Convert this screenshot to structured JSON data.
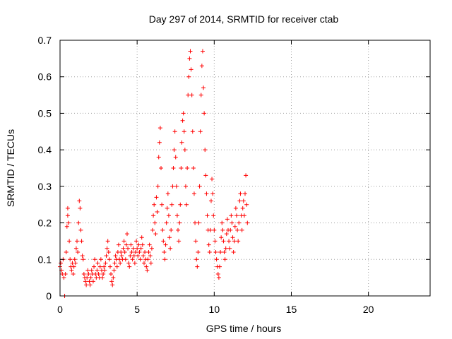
{
  "chart_data": {
    "type": "scatter",
    "title": "Day 297 of 2014, SRMTID for receiver ctab",
    "xlabel": "GPS time / hours",
    "ylabel": "SRMTID / TECUs",
    "xlim": [
      0,
      24
    ],
    "ylim": [
      0,
      0.7
    ],
    "xticks": [
      0,
      5,
      10,
      15,
      20
    ],
    "yticks": [
      0,
      0.1,
      0.2,
      0.3,
      0.4,
      0.5,
      0.6,
      0.7
    ],
    "xtick_labels": [
      "0",
      "5",
      "10",
      "15",
      "20"
    ],
    "ytick_labels": [
      "0",
      "0.1",
      "0.2",
      "0.3",
      "0.4",
      "0.5",
      "0.6",
      "0.7"
    ],
    "grid": true,
    "marker": "+",
    "marker_color": "#ff0000",
    "series": [
      {
        "name": "SRMTID",
        "points": [
          [
            0.0,
            0.08
          ],
          [
            0.05,
            0.09
          ],
          [
            0.1,
            0.07
          ],
          [
            0.15,
            0.06
          ],
          [
            0.2,
            0.1
          ],
          [
            0.25,
            0.05
          ],
          [
            0.3,
            0.0
          ],
          [
            0.35,
            0.06
          ],
          [
            0.4,
            0.12
          ],
          [
            0.45,
            0.19
          ],
          [
            0.5,
            0.22
          ],
          [
            0.5,
            0.24
          ],
          [
            0.55,
            0.2
          ],
          [
            0.6,
            0.15
          ],
          [
            0.65,
            0.1
          ],
          [
            0.7,
            0.08
          ],
          [
            0.75,
            0.07
          ],
          [
            0.8,
            0.09
          ],
          [
            0.85,
            0.06
          ],
          [
            0.9,
            0.08
          ],
          [
            0.95,
            0.1
          ],
          [
            1.0,
            0.09
          ],
          [
            1.05,
            0.13
          ],
          [
            1.1,
            0.15
          ],
          [
            1.15,
            0.12
          ],
          [
            1.2,
            0.2
          ],
          [
            1.25,
            0.26
          ],
          [
            1.3,
            0.24
          ],
          [
            1.35,
            0.18
          ],
          [
            1.4,
            0.15
          ],
          [
            1.45,
            0.11
          ],
          [
            1.5,
            0.1
          ],
          [
            1.55,
            0.06
          ],
          [
            1.6,
            0.05
          ],
          [
            1.65,
            0.04
          ],
          [
            1.7,
            0.03
          ],
          [
            1.75,
            0.05
          ],
          [
            1.8,
            0.07
          ],
          [
            1.85,
            0.06
          ],
          [
            1.9,
            0.04
          ],
          [
            1.95,
            0.03
          ],
          [
            2.0,
            0.05
          ],
          [
            2.05,
            0.07
          ],
          [
            2.1,
            0.06
          ],
          [
            2.15,
            0.04
          ],
          [
            2.2,
            0.08
          ],
          [
            2.25,
            0.1
          ],
          [
            2.3,
            0.06
          ],
          [
            2.35,
            0.05
          ],
          [
            2.4,
            0.07
          ],
          [
            2.45,
            0.09
          ],
          [
            2.5,
            0.06
          ],
          [
            2.55,
            0.05
          ],
          [
            2.6,
            0.08
          ],
          [
            2.65,
            0.1
          ],
          [
            2.7,
            0.07
          ],
          [
            2.75,
            0.05
          ],
          [
            2.8,
            0.06
          ],
          [
            2.85,
            0.08
          ],
          [
            2.9,
            0.07
          ],
          [
            2.95,
            0.09
          ],
          [
            3.0,
            0.11
          ],
          [
            3.05,
            0.13
          ],
          [
            3.1,
            0.15
          ],
          [
            3.15,
            0.12
          ],
          [
            3.2,
            0.1
          ],
          [
            3.25,
            0.08
          ],
          [
            3.3,
            0.06
          ],
          [
            3.35,
            0.04
          ],
          [
            3.4,
            0.03
          ],
          [
            3.45,
            0.05
          ],
          [
            3.5,
            0.07
          ],
          [
            3.55,
            0.09
          ],
          [
            3.6,
            0.11
          ],
          [
            3.65,
            0.1
          ],
          [
            3.7,
            0.08
          ],
          [
            3.75,
            0.12
          ],
          [
            3.8,
            0.14
          ],
          [
            3.85,
            0.1
          ],
          [
            3.9,
            0.09
          ],
          [
            3.95,
            0.12
          ],
          [
            4.0,
            0.11
          ],
          [
            4.05,
            0.1
          ],
          [
            4.1,
            0.13
          ],
          [
            4.15,
            0.15
          ],
          [
            4.2,
            0.12
          ],
          [
            4.25,
            0.1
          ],
          [
            4.3,
            0.14
          ],
          [
            4.35,
            0.17
          ],
          [
            4.4,
            0.13
          ],
          [
            4.45,
            0.09
          ],
          [
            4.5,
            0.08
          ],
          [
            4.55,
            0.11
          ],
          [
            4.6,
            0.14
          ],
          [
            4.65,
            0.12
          ],
          [
            4.7,
            0.1
          ],
          [
            4.75,
            0.13
          ],
          [
            4.8,
            0.11
          ],
          [
            4.85,
            0.09
          ],
          [
            4.9,
            0.12
          ],
          [
            4.95,
            0.15
          ],
          [
            5.0,
            0.13
          ],
          [
            5.05,
            0.11
          ],
          [
            5.1,
            0.14
          ],
          [
            5.15,
            0.12
          ],
          [
            5.2,
            0.1
          ],
          [
            5.25,
            0.13
          ],
          [
            5.3,
            0.16
          ],
          [
            5.35,
            0.14
          ],
          [
            5.4,
            0.11
          ],
          [
            5.45,
            0.09
          ],
          [
            5.5,
            0.12
          ],
          [
            5.55,
            0.1
          ],
          [
            5.6,
            0.08
          ],
          [
            5.65,
            0.07
          ],
          [
            5.7,
            0.1
          ],
          [
            5.75,
            0.12
          ],
          [
            5.8,
            0.14
          ],
          [
            5.85,
            0.11
          ],
          [
            5.9,
            0.09
          ],
          [
            5.95,
            0.13
          ],
          [
            6.0,
            0.18
          ],
          [
            6.05,
            0.22
          ],
          [
            6.1,
            0.25
          ],
          [
            6.15,
            0.2
          ],
          [
            6.2,
            0.17
          ],
          [
            6.25,
            0.27
          ],
          [
            6.3,
            0.23
          ],
          [
            6.35,
            0.3
          ],
          [
            6.4,
            0.38
          ],
          [
            6.45,
            0.42
          ],
          [
            6.5,
            0.46
          ],
          [
            6.55,
            0.35
          ],
          [
            6.6,
            0.25
          ],
          [
            6.65,
            0.18
          ],
          [
            6.7,
            0.15
          ],
          [
            6.75,
            0.12
          ],
          [
            6.8,
            0.1
          ],
          [
            6.85,
            0.14
          ],
          [
            6.9,
            0.2
          ],
          [
            6.95,
            0.24
          ],
          [
            7.0,
            0.28
          ],
          [
            7.05,
            0.22
          ],
          [
            7.1,
            0.16
          ],
          [
            7.15,
            0.13
          ],
          [
            7.2,
            0.18
          ],
          [
            7.25,
            0.25
          ],
          [
            7.3,
            0.3
          ],
          [
            7.35,
            0.35
          ],
          [
            7.4,
            0.4
          ],
          [
            7.45,
            0.45
          ],
          [
            7.5,
            0.38
          ],
          [
            7.55,
            0.3
          ],
          [
            7.6,
            0.22
          ],
          [
            7.65,
            0.18
          ],
          [
            7.7,
            0.15
          ],
          [
            7.75,
            0.2
          ],
          [
            7.8,
            0.25
          ],
          [
            7.85,
            0.35
          ],
          [
            7.9,
            0.42
          ],
          [
            7.95,
            0.48
          ],
          [
            8.0,
            0.5
          ],
          [
            8.05,
            0.45
          ],
          [
            8.1,
            0.4
          ],
          [
            8.15,
            0.3
          ],
          [
            8.2,
            0.25
          ],
          [
            8.25,
            0.35
          ],
          [
            8.3,
            0.55
          ],
          [
            8.35,
            0.6
          ],
          [
            8.4,
            0.65
          ],
          [
            8.45,
            0.67
          ],
          [
            8.5,
            0.62
          ],
          [
            8.55,
            0.55
          ],
          [
            8.6,
            0.45
          ],
          [
            8.65,
            0.35
          ],
          [
            8.7,
            0.28
          ],
          [
            8.75,
            0.2
          ],
          [
            8.8,
            0.15
          ],
          [
            8.85,
            0.1
          ],
          [
            8.9,
            0.08
          ],
          [
            8.95,
            0.12
          ],
          [
            9.0,
            0.2
          ],
          [
            9.05,
            0.3
          ],
          [
            9.1,
            0.45
          ],
          [
            9.15,
            0.55
          ],
          [
            9.2,
            0.63
          ],
          [
            9.25,
            0.67
          ],
          [
            9.3,
            0.57
          ],
          [
            9.35,
            0.5
          ],
          [
            9.4,
            0.4
          ],
          [
            9.45,
            0.33
          ],
          [
            9.5,
            0.28
          ],
          [
            9.55,
            0.22
          ],
          [
            9.6,
            0.18
          ],
          [
            9.65,
            0.14
          ],
          [
            9.7,
            0.12
          ],
          [
            9.75,
            0.18
          ],
          [
            9.8,
            0.26
          ],
          [
            9.85,
            0.32
          ],
          [
            9.9,
            0.28
          ],
          [
            9.95,
            0.22
          ],
          [
            10.0,
            0.18
          ],
          [
            10.05,
            0.15
          ],
          [
            10.1,
            0.12
          ],
          [
            10.15,
            0.1
          ],
          [
            10.2,
            0.08
          ],
          [
            10.25,
            0.06
          ],
          [
            10.3,
            0.05
          ],
          [
            10.35,
            0.08
          ],
          [
            10.4,
            0.12
          ],
          [
            10.45,
            0.16
          ],
          [
            10.5,
            0.2
          ],
          [
            10.55,
            0.18
          ],
          [
            10.6,
            0.15
          ],
          [
            10.65,
            0.12
          ],
          [
            10.7,
            0.1
          ],
          [
            10.75,
            0.13
          ],
          [
            10.8,
            0.17
          ],
          [
            10.85,
            0.21
          ],
          [
            10.9,
            0.18
          ],
          [
            10.95,
            0.15
          ],
          [
            11.0,
            0.13
          ],
          [
            11.05,
            0.18
          ],
          [
            11.1,
            0.22
          ],
          [
            11.15,
            0.2
          ],
          [
            11.2,
            0.16
          ],
          [
            11.25,
            0.12
          ],
          [
            11.3,
            0.15
          ],
          [
            11.35,
            0.19
          ],
          [
            11.4,
            0.24
          ],
          [
            11.45,
            0.22
          ],
          [
            11.5,
            0.18
          ],
          [
            11.55,
            0.15
          ],
          [
            11.6,
            0.2
          ],
          [
            11.65,
            0.26
          ],
          [
            11.7,
            0.28
          ],
          [
            11.75,
            0.22
          ],
          [
            11.8,
            0.18
          ],
          [
            11.85,
            0.24
          ],
          [
            11.9,
            0.26
          ],
          [
            11.95,
            0.22
          ],
          [
            12.0,
            0.28
          ],
          [
            12.05,
            0.33
          ],
          [
            12.1,
            0.25
          ],
          [
            12.15,
            0.2
          ]
        ]
      }
    ]
  }
}
